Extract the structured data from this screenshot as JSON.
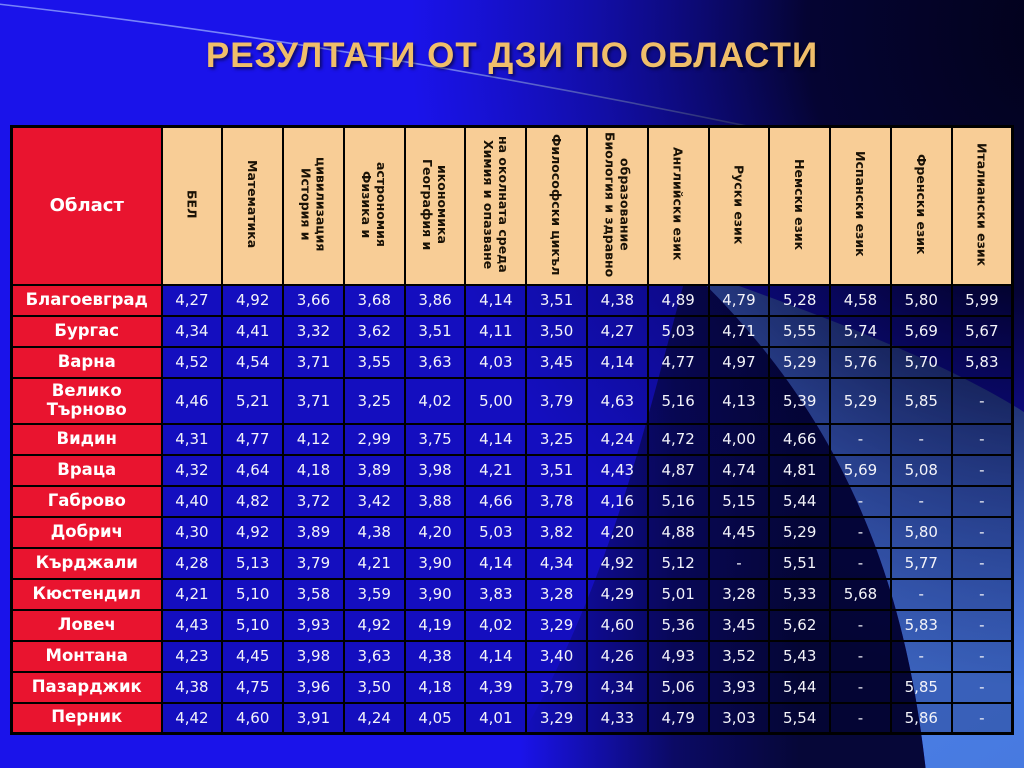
{
  "title": "РЕЗУЛТАТИ ОТ ДЗИ ПО ОБЛАСТИ",
  "colors": {
    "background_blue": "#1a13ea",
    "light_swoosh_blue": "#4d7fe6",
    "dark_swoosh_navy": "#060738",
    "header_tan": "#f8cd96",
    "region_red": "#e9142f",
    "title_gold": "#f0be6a",
    "cell_text": "#f4f4fa",
    "grid_black": "#000000"
  },
  "chart_data": {
    "type": "table",
    "title": "РЕЗУЛТАТИ ОТ ДЗИ ПО ОБЛАСТИ",
    "region_header": "Област",
    "subject_headers": [
      "БЕЛ",
      "Математика",
      "История и цивилизация",
      "Физика и астрономия",
      "География и икономика",
      "Химия и опазване на околната среда",
      "Философски цикъл",
      "Биология и здравно образование",
      "Английски език",
      "Руски език",
      "Немски език",
      "Испански език",
      "Френски език",
      "Италиански език"
    ],
    "rows": [
      {
        "region": "Благоевград",
        "tall": false,
        "values": [
          "4,27",
          "4,92",
          "3,66",
          "3,68",
          "3,86",
          "4,14",
          "3,51",
          "4,38",
          "4,89",
          "4,79",
          "5,28",
          "4,58",
          "5,80",
          "5,99"
        ]
      },
      {
        "region": "Бургас",
        "tall": false,
        "values": [
          "4,34",
          "4,41",
          "3,32",
          "3,62",
          "3,51",
          "4,11",
          "3,50",
          "4,27",
          "5,03",
          "4,71",
          "5,55",
          "5,74",
          "5,69",
          "5,67"
        ]
      },
      {
        "region": "Варна",
        "tall": false,
        "values": [
          "4,52",
          "4,54",
          "3,71",
          "3,55",
          "3,63",
          "4,03",
          "3,45",
          "4,14",
          "4,77",
          "4,97",
          "5,29",
          "5,76",
          "5,70",
          "5,83"
        ]
      },
      {
        "region": "Велико Търново",
        "tall": true,
        "values": [
          "4,46",
          "5,21",
          "3,71",
          "3,25",
          "4,02",
          "5,00",
          "3,79",
          "4,63",
          "5,16",
          "4,13",
          "5,39",
          "5,29",
          "5,85",
          "-"
        ]
      },
      {
        "region": "Видин",
        "tall": false,
        "values": [
          "4,31",
          "4,77",
          "4,12",
          "2,99",
          "3,75",
          "4,14",
          "3,25",
          "4,24",
          "4,72",
          "4,00",
          "4,66",
          "-",
          "-",
          "-"
        ]
      },
      {
        "region": "Враца",
        "tall": false,
        "values": [
          "4,32",
          "4,64",
          "4,18",
          "3,89",
          "3,98",
          "4,21",
          "3,51",
          "4,43",
          "4,87",
          "4,74",
          "4,81",
          "5,69",
          "5,08",
          "-"
        ]
      },
      {
        "region": "Габрово",
        "tall": false,
        "values": [
          "4,40",
          "4,82",
          "3,72",
          "3,42",
          "3,88",
          "4,66",
          "3,78",
          "4,16",
          "5,16",
          "5,15",
          "5,44",
          "-",
          "-",
          "-"
        ]
      },
      {
        "region": "Добрич",
        "tall": false,
        "values": [
          "4,30",
          "4,92",
          "3,89",
          "4,38",
          "4,20",
          "5,03",
          "3,82",
          "4,20",
          "4,88",
          "4,45",
          "5,29",
          "-",
          "5,80",
          "-"
        ]
      },
      {
        "region": "Кърджали",
        "tall": false,
        "values": [
          "4,28",
          "5,13",
          "3,79",
          "4,21",
          "3,90",
          "4,14",
          "4,34",
          "4,92",
          "5,12",
          "-",
          "5,51",
          "-",
          "5,77",
          "-"
        ]
      },
      {
        "region": "Кюстендил",
        "tall": false,
        "values": [
          "4,21",
          "5,10",
          "3,58",
          "3,59",
          "3,90",
          "3,83",
          "3,28",
          "4,29",
          "5,01",
          "3,28",
          "5,33",
          "5,68",
          "-",
          "-"
        ]
      },
      {
        "region": "Ловеч",
        "tall": false,
        "values": [
          "4,43",
          "5,10",
          "3,93",
          "4,92",
          "4,19",
          "4,02",
          "3,29",
          "4,60",
          "5,36",
          "3,45",
          "5,62",
          "-",
          "5,83",
          "-"
        ]
      },
      {
        "region": "Монтана",
        "tall": false,
        "values": [
          "4,23",
          "4,45",
          "3,98",
          "3,63",
          "4,38",
          "4,14",
          "3,40",
          "4,26",
          "4,93",
          "3,52",
          "5,43",
          "-",
          "-",
          "-"
        ]
      },
      {
        "region": "Пазарджик",
        "tall": false,
        "values": [
          "4,38",
          "4,75",
          "3,96",
          "3,50",
          "4,18",
          "4,39",
          "3,79",
          "4,34",
          "5,06",
          "3,93",
          "5,44",
          "-",
          "5,85",
          "-"
        ]
      },
      {
        "region": "Перник",
        "tall": false,
        "values": [
          "4,42",
          "4,60",
          "3,91",
          "4,24",
          "4,05",
          "4,01",
          "3,29",
          "4,33",
          "4,79",
          "3,03",
          "5,54",
          "-",
          "5,86",
          "-"
        ]
      }
    ]
  }
}
